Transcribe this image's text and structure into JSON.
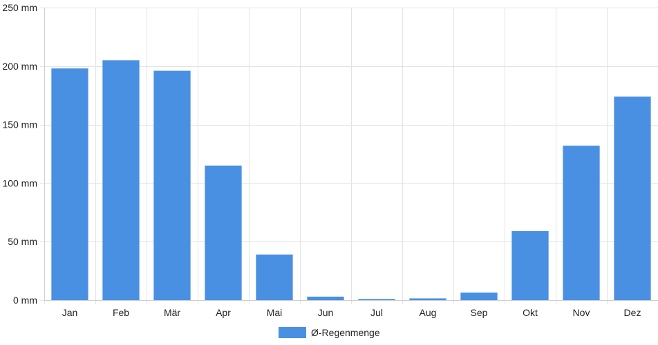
{
  "chart_data": {
    "type": "bar",
    "categories": [
      "Jan",
      "Feb",
      "Mär",
      "Apr",
      "Mai",
      "Jun",
      "Jul",
      "Aug",
      "Sep",
      "Okt",
      "Nov",
      "Dez"
    ],
    "series": [
      {
        "name": "Ø-Regenmenge",
        "color": "#4a90e2",
        "values": [
          198,
          205,
          196,
          115,
          39,
          3,
          1,
          1.5,
          6.5,
          59,
          132,
          174
        ]
      }
    ],
    "ylim": [
      0,
      250
    ],
    "y_ticks": [
      0,
      50,
      100,
      150,
      200,
      250
    ],
    "y_tick_labels": [
      "0 mm",
      "50 mm",
      "100 mm",
      "150 mm",
      "200 mm",
      "250 mm"
    ],
    "grid": true,
    "legend_position": "bottom-center"
  }
}
